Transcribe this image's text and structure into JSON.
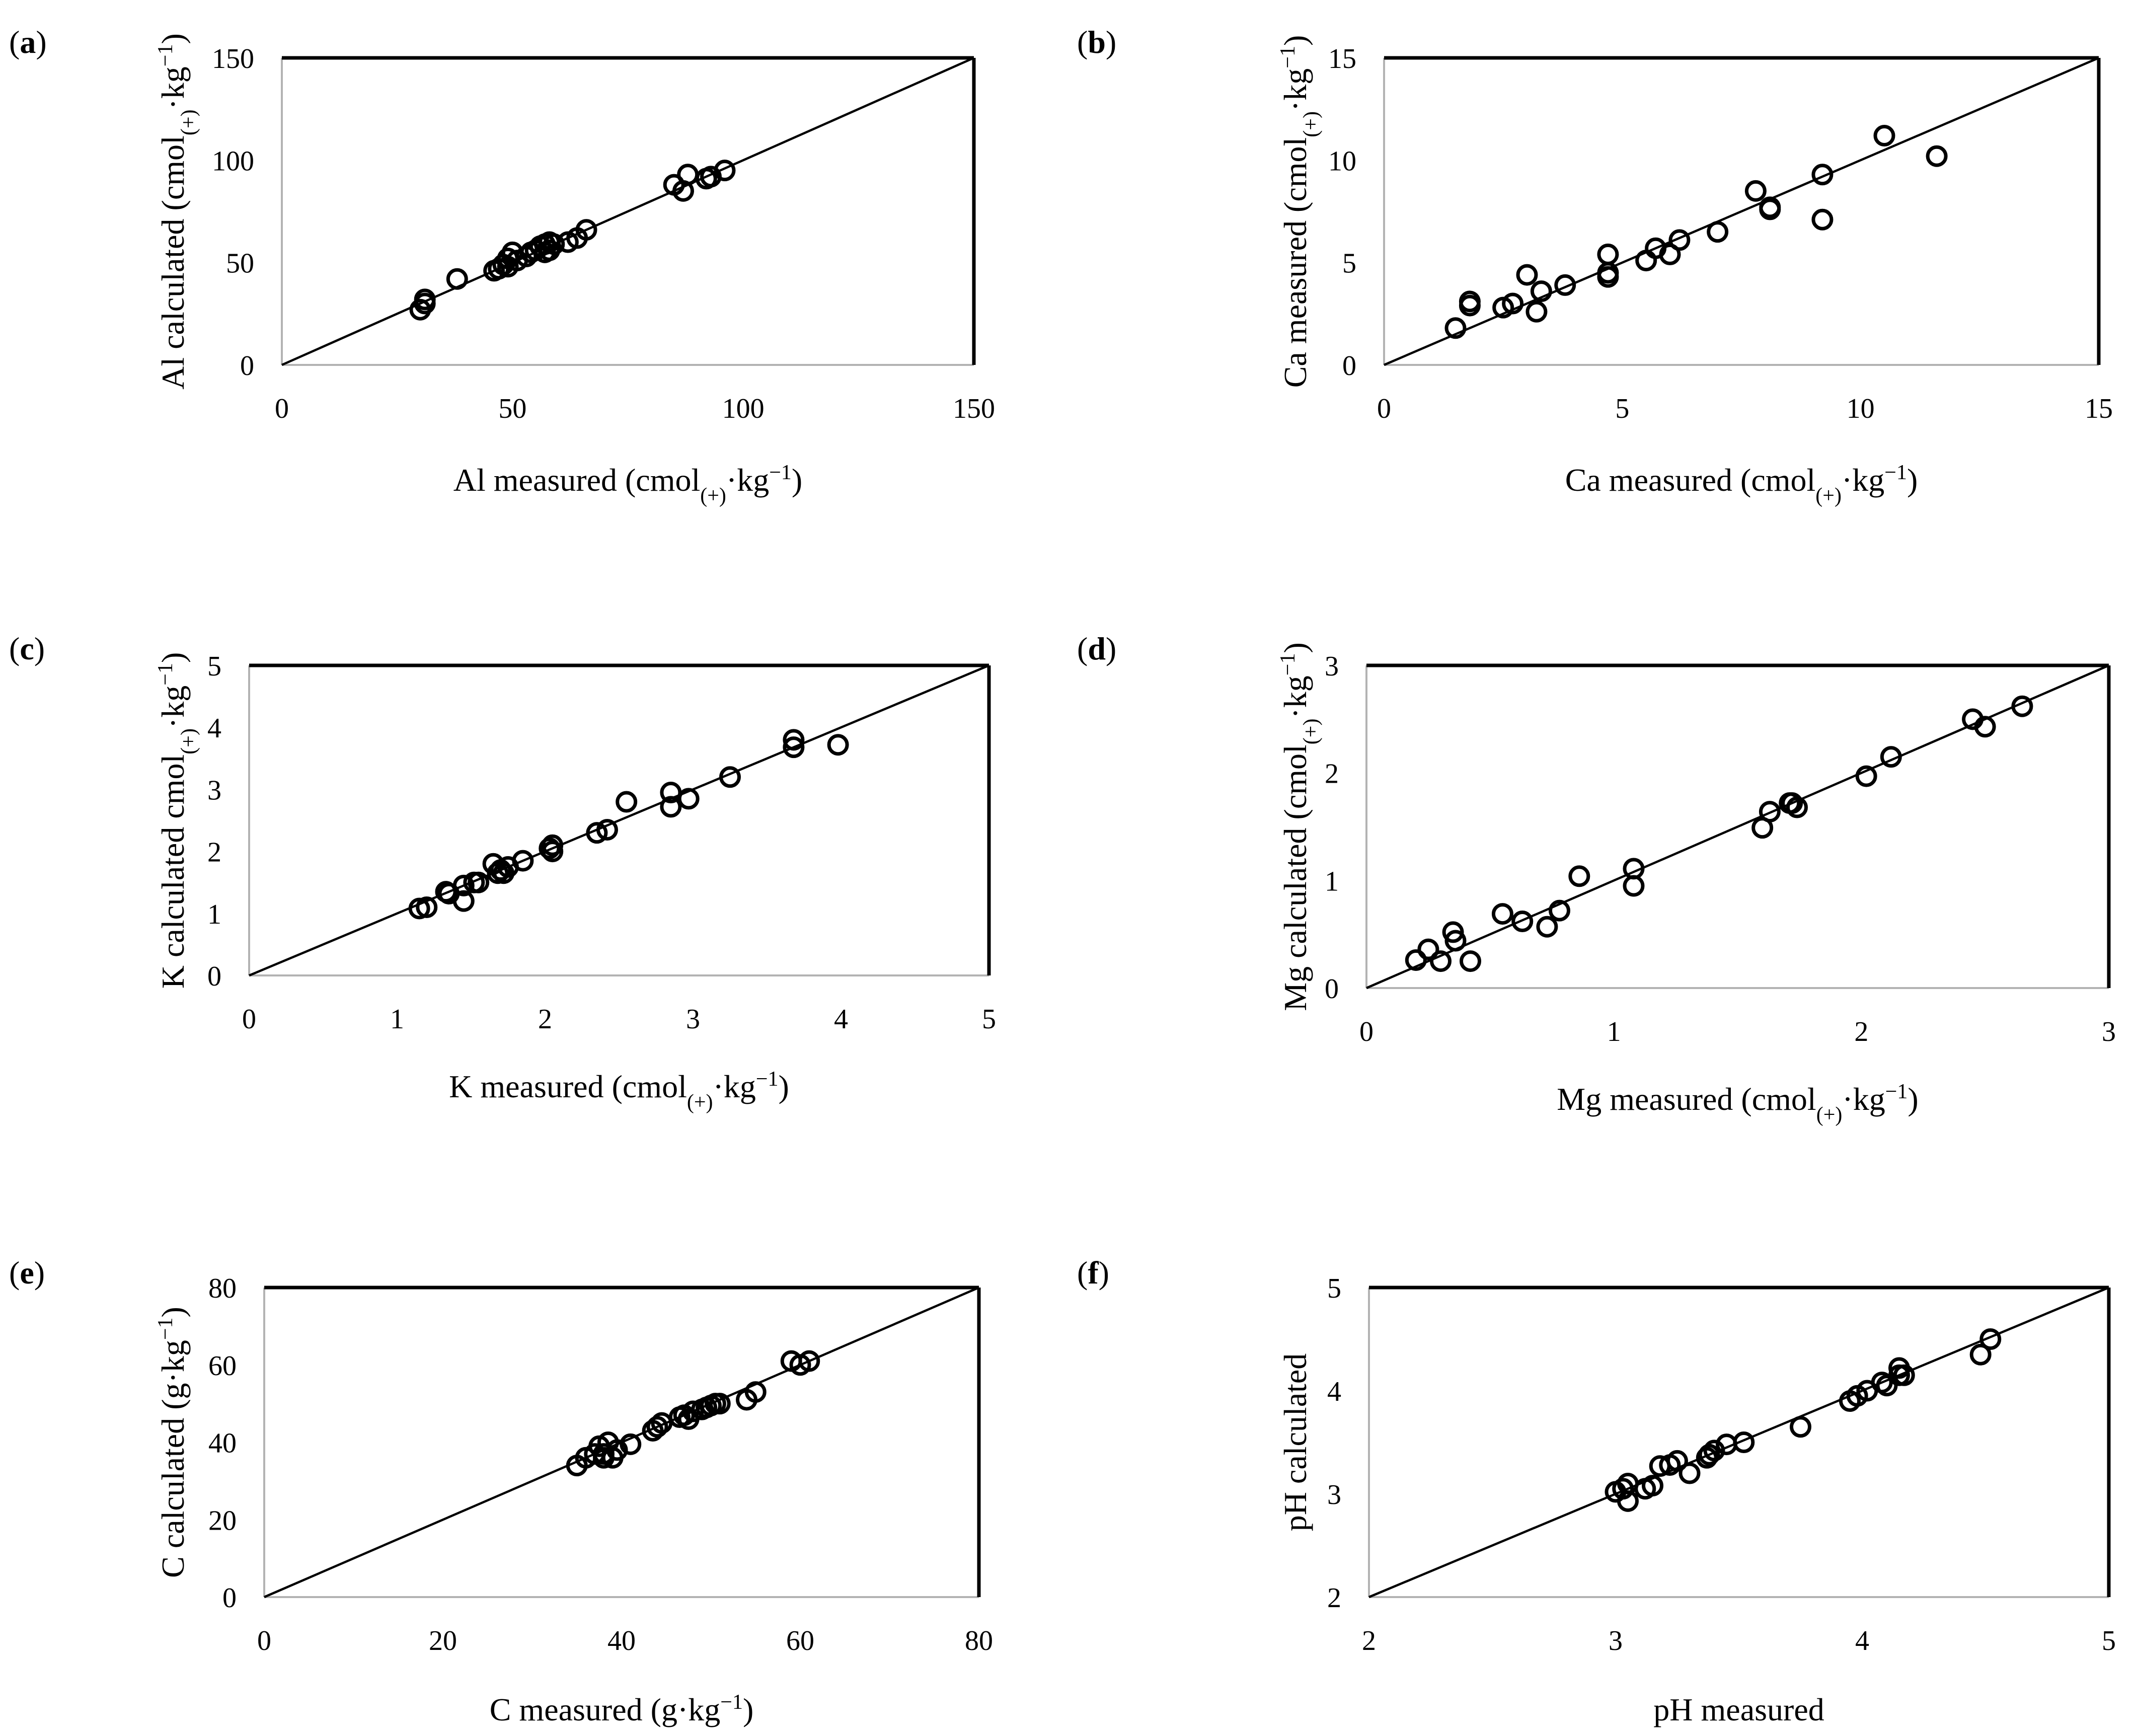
{
  "chart_data": [
    {
      "type": "scatter",
      "panel_label": "a",
      "xlabel": {
        "main": "Al measured (cmol",
        "sub": "(+)",
        "after": "·kg",
        "sup": "−1",
        "close": ")"
      },
      "ylabel": {
        "main": "Al calculated (cmol",
        "sub": "(+)",
        "after": "·kg",
        "sup": "−1",
        "close": ")"
      },
      "xlim": [
        0,
        150
      ],
      "ylim": [
        0,
        150
      ],
      "xticks": [
        0,
        50,
        100,
        150
      ],
      "yticks": [
        0,
        50,
        100,
        150
      ],
      "tick_labels_x": [
        "0",
        "50",
        "100",
        "150"
      ],
      "tick_labels_y": [
        "0",
        "50",
        "100",
        "150"
      ],
      "reference_line": "1:1",
      "points": [
        [
          30,
          27
        ],
        [
          31,
          30
        ],
        [
          31,
          32
        ],
        [
          38,
          42
        ],
        [
          46,
          46
        ],
        [
          47,
          47
        ],
        [
          48,
          49
        ],
        [
          49,
          48
        ],
        [
          49,
          52
        ],
        [
          50,
          55
        ],
        [
          51,
          51
        ],
        [
          53,
          53
        ],
        [
          54,
          55
        ],
        [
          55,
          56
        ],
        [
          56,
          58
        ],
        [
          57,
          55
        ],
        [
          57,
          59
        ],
        [
          58,
          56
        ],
        [
          58,
          60
        ],
        [
          59,
          59
        ],
        [
          62,
          60
        ],
        [
          64,
          62
        ],
        [
          66,
          66
        ],
        [
          85,
          88
        ],
        [
          87,
          85
        ],
        [
          88,
          93
        ],
        [
          92,
          91
        ],
        [
          93,
          92
        ],
        [
          96,
          95
        ]
      ]
    },
    {
      "type": "scatter",
      "panel_label": "b",
      "xlabel": {
        "main": "Ca measured (cmol",
        "sub": "(+)",
        "after": "·kg",
        "sup": "−1",
        "close": ")"
      },
      "ylabel": {
        "main": "Ca measured (cmol",
        "sub": "(+)",
        "after": "·kg",
        "sup": "−1",
        "close": ")"
      },
      "xlim": [
        0,
        15
      ],
      "ylim": [
        0,
        15
      ],
      "xticks": [
        0,
        5,
        10,
        15
      ],
      "yticks": [
        0,
        5,
        10,
        15
      ],
      "tick_labels_x": [
        "0",
        "5",
        "10",
        "15"
      ],
      "tick_labels_y": [
        "0",
        "5",
        "10",
        "15"
      ],
      "reference_line": "1:1",
      "points": [
        [
          1.5,
          1.8
        ],
        [
          1.8,
          2.9
        ],
        [
          1.8,
          3.1
        ],
        [
          2.5,
          2.8
        ],
        [
          2.7,
          3.0
        ],
        [
          3.0,
          4.4
        ],
        [
          3.2,
          2.6
        ],
        [
          3.3,
          3.6
        ],
        [
          3.8,
          3.9
        ],
        [
          4.7,
          4.3
        ],
        [
          4.7,
          4.5
        ],
        [
          4.7,
          5.4
        ],
        [
          5.5,
          5.1
        ],
        [
          5.7,
          5.7
        ],
        [
          6.0,
          5.4
        ],
        [
          6.2,
          6.1
        ],
        [
          7.0,
          6.5
        ],
        [
          7.8,
          8.5
        ],
        [
          8.1,
          7.6
        ],
        [
          8.1,
          7.7
        ],
        [
          9.2,
          9.3
        ],
        [
          9.2,
          7.1
        ],
        [
          10.5,
          11.2
        ],
        [
          11.6,
          10.2
        ]
      ]
    },
    {
      "type": "scatter",
      "panel_label": "c",
      "xlabel": {
        "main": "K measured (cmol",
        "sub": "(+)",
        "after": "·kg",
        "sup": "−1",
        "close": ")"
      },
      "ylabel": {
        "main": "K calculated cmol",
        "sub": "(+)",
        "after": "·kg",
        "sup": "−1",
        "close": ")"
      },
      "xlim": [
        0,
        5
      ],
      "ylim": [
        0,
        5
      ],
      "xticks": [
        0,
        1,
        2,
        3,
        4,
        5
      ],
      "yticks": [
        0,
        1,
        2,
        3,
        4,
        5
      ],
      "tick_labels_x": [
        "0",
        "1",
        "2",
        "3",
        "4",
        "5"
      ],
      "tick_labels_y": [
        "0",
        "1",
        "2",
        "3",
        "4",
        "5"
      ],
      "reference_line": "1:1",
      "points": [
        [
          1.15,
          1.08
        ],
        [
          1.2,
          1.1
        ],
        [
          1.33,
          1.35
        ],
        [
          1.35,
          1.32
        ],
        [
          1.45,
          1.2
        ],
        [
          1.45,
          1.45
        ],
        [
          1.52,
          1.5
        ],
        [
          1.55,
          1.5
        ],
        [
          1.65,
          1.8
        ],
        [
          1.68,
          1.65
        ],
        [
          1.7,
          1.7
        ],
        [
          1.72,
          1.65
        ],
        [
          1.75,
          1.75
        ],
        [
          1.85,
          1.85
        ],
        [
          2.03,
          2.05
        ],
        [
          2.05,
          2.1
        ],
        [
          2.05,
          2.0
        ],
        [
          2.35,
          2.3
        ],
        [
          2.42,
          2.35
        ],
        [
          2.55,
          2.8
        ],
        [
          2.85,
          2.95
        ],
        [
          2.85,
          2.72
        ],
        [
          2.97,
          2.85
        ],
        [
          3.25,
          3.2
        ],
        [
          3.68,
          3.8
        ],
        [
          3.68,
          3.68
        ],
        [
          3.98,
          3.72
        ]
      ]
    },
    {
      "type": "scatter",
      "panel_label": "d",
      "xlabel": {
        "main": "Mg measured (cmol",
        "sub": "(+)",
        "after": "·kg",
        "sup": "−1",
        "close": ")"
      },
      "ylabel": {
        "main": "Mg calculated (cmol",
        "sub": "(+)",
        "after": "·kg",
        "sup": "−1",
        "close": ")"
      },
      "xlim": [
        0,
        3
      ],
      "ylim": [
        0,
        3
      ],
      "xticks": [
        0,
        1,
        2,
        3
      ],
      "yticks": [
        0,
        1,
        2,
        3
      ],
      "tick_labels_x": [
        "0",
        "1",
        "2",
        "3"
      ],
      "tick_labels_y": [
        "0",
        "1",
        "2",
        "3"
      ],
      "reference_line": "1:1",
      "points": [
        [
          0.2,
          0.26
        ],
        [
          0.25,
          0.36
        ],
        [
          0.3,
          0.25
        ],
        [
          0.35,
          0.52
        ],
        [
          0.36,
          0.44
        ],
        [
          0.42,
          0.25
        ],
        [
          0.55,
          0.69
        ],
        [
          0.63,
          0.62
        ],
        [
          0.73,
          0.57
        ],
        [
          0.78,
          0.72
        ],
        [
          0.86,
          1.04
        ],
        [
          1.08,
          1.11
        ],
        [
          1.08,
          0.95
        ],
        [
          1.6,
          1.49
        ],
        [
          1.63,
          1.64
        ],
        [
          1.71,
          1.72
        ],
        [
          1.72,
          1.72
        ],
        [
          1.74,
          1.68
        ],
        [
          2.02,
          1.97
        ],
        [
          2.12,
          2.15
        ],
        [
          2.45,
          2.5
        ],
        [
          2.5,
          2.43
        ],
        [
          2.65,
          2.62
        ]
      ]
    },
    {
      "type": "scatter",
      "panel_label": "e",
      "xlabel": {
        "main": "C measured (g·kg",
        "sup": "−1",
        "close": ")"
      },
      "ylabel": {
        "main": "C calculated (g·kg",
        "sup": "−1",
        "close": ")"
      },
      "xlim": [
        0,
        80
      ],
      "ylim": [
        0,
        80
      ],
      "xticks": [
        0,
        20,
        40,
        60,
        80
      ],
      "yticks": [
        0,
        20,
        40,
        60,
        80
      ],
      "tick_labels_x": [
        "0",
        "20",
        "40",
        "60",
        "80"
      ],
      "tick_labels_y": [
        "0",
        "20",
        "40",
        "60",
        "80"
      ],
      "reference_line": "1:1",
      "points": [
        [
          35,
          34
        ],
        [
          36,
          36
        ],
        [
          37,
          37
        ],
        [
          37.5,
          39
        ],
        [
          38,
          36
        ],
        [
          38,
          37
        ],
        [
          38.5,
          40
        ],
        [
          39,
          36
        ],
        [
          39.5,
          38
        ],
        [
          41,
          39.5
        ],
        [
          43.5,
          43
        ],
        [
          44,
          44
        ],
        [
          44.5,
          45
        ],
        [
          46.5,
          46.5
        ],
        [
          47,
          47
        ],
        [
          47.5,
          46
        ],
        [
          48,
          48
        ],
        [
          49,
          48.5
        ],
        [
          49.5,
          49
        ],
        [
          50,
          49.5
        ],
        [
          50.5,
          50
        ],
        [
          51,
          50
        ],
        [
          54,
          51
        ],
        [
          55,
          53
        ],
        [
          59,
          61
        ],
        [
          60,
          60
        ],
        [
          61,
          61
        ]
      ]
    },
    {
      "type": "scatter",
      "panel_label": "f",
      "xlabel": {
        "main": "pH measured"
      },
      "ylabel": {
        "main": "pH calculated"
      },
      "xlim": [
        2,
        5
      ],
      "ylim": [
        2,
        5
      ],
      "xticks": [
        2,
        3,
        4,
        5
      ],
      "yticks": [
        2,
        3,
        4,
        5
      ],
      "tick_labels_x": [
        "2",
        "3",
        "4",
        "5"
      ],
      "tick_labels_y": [
        "2",
        "3",
        "4",
        "5"
      ],
      "reference_line": "1:1",
      "points": [
        [
          3.0,
          3.02
        ],
        [
          3.03,
          3.05
        ],
        [
          3.05,
          2.93
        ],
        [
          3.05,
          3.1
        ],
        [
          3.12,
          3.05
        ],
        [
          3.15,
          3.08
        ],
        [
          3.18,
          3.27
        ],
        [
          3.22,
          3.28
        ],
        [
          3.25,
          3.32
        ],
        [
          3.3,
          3.2
        ],
        [
          3.37,
          3.35
        ],
        [
          3.38,
          3.38
        ],
        [
          3.4,
          3.42
        ],
        [
          3.45,
          3.48
        ],
        [
          3.52,
          3.5
        ],
        [
          3.75,
          3.65
        ],
        [
          3.95,
          3.9
        ],
        [
          3.98,
          3.95
        ],
        [
          4.02,
          4.0
        ],
        [
          4.08,
          4.08
        ],
        [
          4.1,
          4.05
        ],
        [
          4.15,
          4.15
        ],
        [
          4.15,
          4.22
        ],
        [
          4.17,
          4.15
        ],
        [
          4.48,
          4.35
        ],
        [
          4.52,
          4.5
        ]
      ]
    }
  ]
}
